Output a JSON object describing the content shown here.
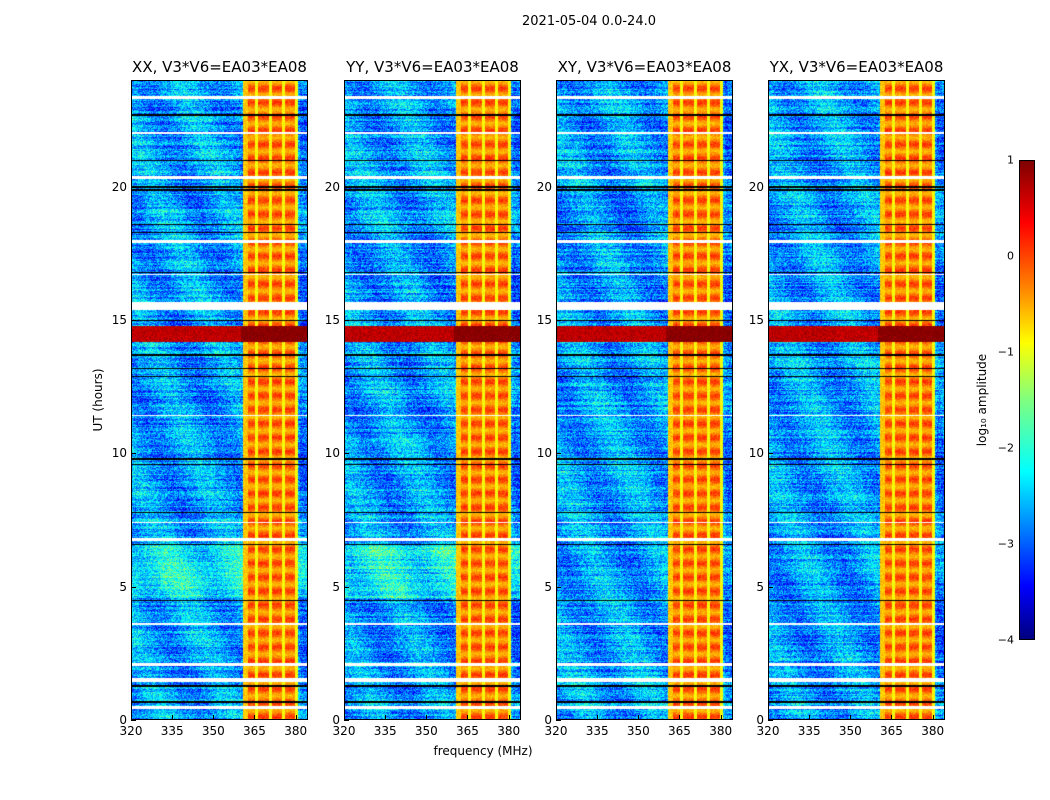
{
  "suptitle": "2021-05-04 0.0-24.0",
  "xlabel": "frequency (MHz)",
  "ylabel": "UT (hours)",
  "colorbar": {
    "label": "log₁₀ amplitude",
    "ticks": [
      "1",
      "0",
      "−1",
      "−2",
      "−3",
      "−4"
    ],
    "tick_values": [
      1,
      0,
      -1,
      -2,
      -3,
      -4
    ],
    "range": [
      -4,
      1
    ],
    "colormap": "jet"
  },
  "panels": [
    {
      "title": "XX, V3*V6=EA03*EA08"
    },
    {
      "title": "YY, V3*V6=EA03*EA08"
    },
    {
      "title": "XY, V3*V6=EA03*EA08"
    },
    {
      "title": "YX, V3*V6=EA03*EA08"
    }
  ],
  "x_ticks": [
    "320",
    "335",
    "350",
    "365",
    "380"
  ],
  "x_tick_values": [
    320,
    335,
    350,
    365,
    380
  ],
  "y_ticks": [
    "0",
    "5",
    "10",
    "15",
    "20"
  ],
  "y_tick_values": [
    0,
    5,
    10,
    15,
    20
  ],
  "chart_data": {
    "type": "heatmap",
    "title": "2021-05-04 0.0-24.0",
    "xlabel": "frequency (MHz)",
    "ylabel": "UT (hours)",
    "xlim": [
      320,
      384.5
    ],
    "ylim": [
      0,
      24
    ],
    "zlabel": "log10 amplitude",
    "zlim": [
      -4,
      1
    ],
    "background_level": -2.6,
    "high_band_mhz": [
      360.7,
      380.5
    ],
    "high_band_level": -0.2,
    "band_separators_mhz": [
      365.5,
      370.6,
      375.3,
      380.0
    ],
    "rfi_ut_band": [
      14.2,
      14.8
    ],
    "rfi_level": 0.7,
    "flagged_ut_blank": [
      [
        15.4,
        15.7
      ],
      [
        1.45,
        1.6
      ],
      [
        0.45,
        0.55
      ],
      [
        2.05,
        2.15
      ],
      [
        6.75,
        6.85
      ],
      [
        7.4,
        7.45
      ],
      [
        17.9,
        18.0
      ],
      [
        20.3,
        20.4
      ],
      [
        22.0,
        22.05
      ],
      [
        23.3,
        23.4
      ],
      [
        11.4,
        11.45
      ],
      [
        3.6,
        3.65
      ],
      [
        16.7,
        16.75
      ]
    ],
    "dark_ut_lines": [
      0.7,
      1.3,
      4.5,
      6.6,
      7.8,
      9.6,
      9.8,
      12.9,
      13.2,
      13.7,
      15.0,
      16.8,
      18.3,
      18.6,
      19.9,
      20.0,
      21.0,
      22.7
    ],
    "panels": [
      "XX",
      "YY",
      "XY",
      "YX"
    ]
  }
}
